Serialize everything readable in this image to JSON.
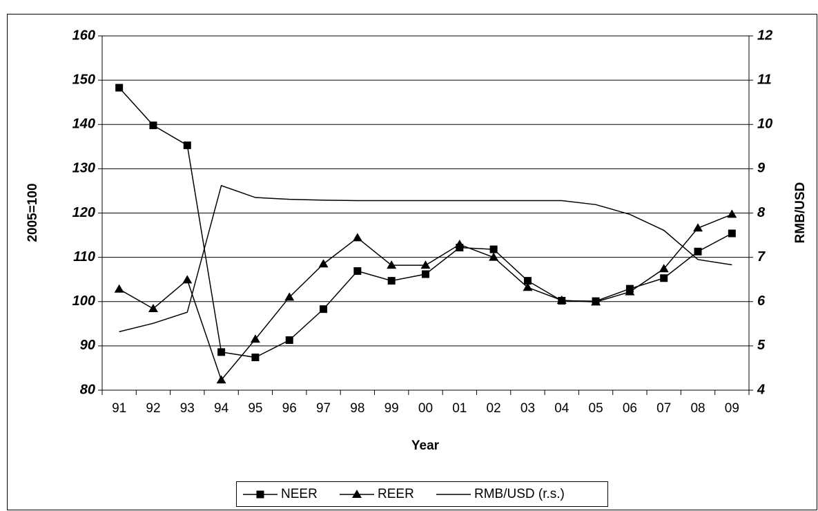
{
  "chart_data": {
    "type": "line",
    "x_label": "Year",
    "y_label": "2005=100",
    "y2_label": "RMB/USD",
    "categories": [
      "91",
      "92",
      "93",
      "94",
      "95",
      "96",
      "97",
      "98",
      "99",
      "00",
      "01",
      "02",
      "03",
      "04",
      "05",
      "06",
      "07",
      "08",
      "09"
    ],
    "ylim": [
      80,
      160
    ],
    "yticks": [
      80,
      90,
      100,
      110,
      120,
      130,
      140,
      150,
      160
    ],
    "y2lim": [
      4,
      12
    ],
    "y2ticks": [
      4,
      5,
      6,
      7,
      8,
      9,
      10,
      11,
      12
    ],
    "grid": true,
    "series": [
      {
        "name": "NEER",
        "color": "#000000",
        "marker": "square",
        "values": [
          148.3,
          139.8,
          135.3,
          88.6,
          87.4,
          91.3,
          98.3,
          106.9,
          104.7,
          106.2,
          112.2,
          111.8,
          104.7,
          100.2,
          100.1,
          102.9,
          105.3,
          111.3,
          115.4
        ]
      },
      {
        "name": "REER",
        "color": "#000000",
        "marker": "triangle",
        "values": [
          102.8,
          98.4,
          104.9,
          82.3,
          91.5,
          101.0,
          108.5,
          114.4,
          108.2,
          108.2,
          112.9,
          110.0,
          103.2,
          100.3,
          99.9,
          102.2,
          107.4,
          116.6,
          119.7
        ]
      },
      {
        "name": "RMB/USD (r.s.)",
        "color": "#000000",
        "marker": "none",
        "axis": "y2",
        "values": [
          5.32,
          5.51,
          5.76,
          8.62,
          8.35,
          8.31,
          8.29,
          8.28,
          8.28,
          8.28,
          8.28,
          8.28,
          8.28,
          8.28,
          8.19,
          7.97,
          7.61,
          6.95,
          6.83
        ]
      }
    ]
  }
}
